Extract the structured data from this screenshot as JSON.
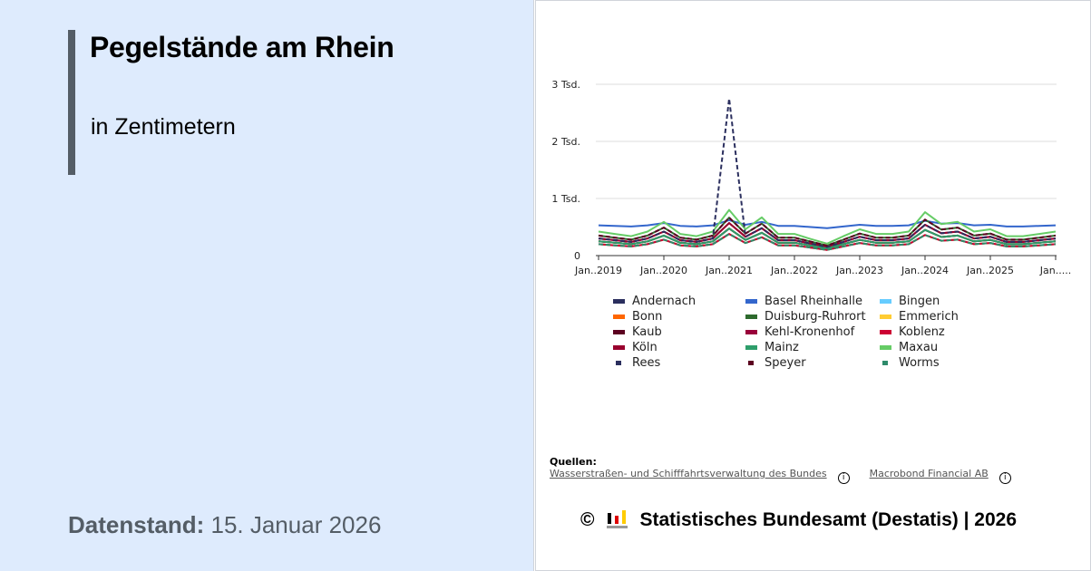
{
  "title": "Pegelstände am Rhein",
  "subtitle": "in Zentimetern",
  "datenstand_label": "Datenstand:",
  "datenstand_value": "15. Januar 2026",
  "sources": {
    "heading": "Quellen:",
    "items": [
      "Wasserstraßen- und Schifffahrtsverwaltung des Bundes",
      "Macrobond Financial AB"
    ]
  },
  "footer": {
    "copyright": "©",
    "text": "Statistisches Bundesamt (Destatis) | 2026"
  },
  "chart_data": {
    "type": "line",
    "ylim": [
      0,
      3000
    ],
    "yticks": [
      0,
      1000,
      2000,
      3000
    ],
    "ytick_labels": [
      "0",
      "1 Tsd.",
      "2 Tsd.",
      "3 Tsd."
    ],
    "xticks": [
      "2019-01",
      "2020-01",
      "2021-01",
      "2022-01",
      "2023-01",
      "2024-01",
      "2025-01",
      "2026-01"
    ],
    "xtick_labels": [
      "Jan..2019",
      "Jan..2020",
      "Jan..2021",
      "Jan..2022",
      "Jan..2023",
      "Jan..2024",
      "Jan..2025",
      "Jan....."
    ],
    "grid": true,
    "legend": "bottom",
    "x": [
      "2019-01",
      "2019-04",
      "2019-07",
      "2019-10",
      "2020-01",
      "2020-04",
      "2020-07",
      "2020-10",
      "2021-01",
      "2021-04",
      "2021-07",
      "2021-10",
      "2022-01",
      "2022-04",
      "2022-07",
      "2022-10",
      "2023-01",
      "2023-04",
      "2023-07",
      "2023-10",
      "2024-01",
      "2024-04",
      "2024-07",
      "2024-10",
      "2025-01",
      "2025-04",
      "2025-07",
      "2025-10",
      "2026-01"
    ],
    "series": [
      {
        "name": "Andernach",
        "color": "#2b2f5e",
        "dash": false,
        "values": [
          250,
          225,
          200,
          250,
          350,
          225,
          200,
          250,
          475,
          275,
          400,
          225,
          225,
          175,
          125,
          200,
          275,
          225,
          225,
          250,
          450,
          325,
          350,
          250,
          275,
          200,
          200,
          225,
          250
        ]
      },
      {
        "name": "Basel Rheinhalle",
        "color": "#3366cc",
        "dash": false,
        "values": [
          530,
          520,
          510,
          530,
          570,
          520,
          510,
          530,
          620,
          540,
          590,
          520,
          520,
          500,
          480,
          510,
          540,
          520,
          520,
          530,
          610,
          560,
          570,
          530,
          540,
          510,
          510,
          520,
          530
        ]
      },
      {
        "name": "Bingen",
        "color": "#66ccff",
        "dash": false,
        "values": [
          200,
          180,
          160,
          200,
          280,
          180,
          160,
          200,
          380,
          220,
          320,
          180,
          180,
          140,
          100,
          160,
          220,
          180,
          180,
          200,
          360,
          260,
          280,
          200,
          220,
          160,
          160,
          180,
          200
        ]
      },
      {
        "name": "Bonn",
        "color": "#ff6600",
        "dash": false,
        "values": [
          250,
          225,
          200,
          250,
          350,
          225,
          200,
          250,
          475,
          275,
          400,
          225,
          225,
          175,
          125,
          200,
          275,
          225,
          225,
          250,
          450,
          325,
          350,
          250,
          275,
          200,
          200,
          225,
          250
        ]
      },
      {
        "name": "Duisburg-Ruhrort",
        "color": "#2d6a2d",
        "dash": false,
        "values": [
          350,
          315,
          280,
          350,
          490,
          315,
          280,
          350,
          665,
          385,
          560,
          315,
          315,
          245,
          175,
          280,
          385,
          315,
          315,
          350,
          630,
          455,
          490,
          350,
          385,
          280,
          280,
          315,
          350
        ]
      },
      {
        "name": "Emmerich",
        "color": "#ffcc33",
        "dash": false,
        "values": [
          200,
          180,
          160,
          200,
          280,
          180,
          160,
          200,
          380,
          220,
          320,
          180,
          180,
          140,
          100,
          160,
          220,
          180,
          180,
          200,
          360,
          260,
          280,
          200,
          220,
          160,
          160,
          180,
          200
        ]
      },
      {
        "name": "Kaub",
        "color": "#5c0020",
        "dash": false,
        "values": [
          250,
          225,
          200,
          250,
          350,
          225,
          200,
          250,
          475,
          275,
          400,
          225,
          225,
          175,
          125,
          200,
          275,
          225,
          225,
          250,
          450,
          325,
          350,
          250,
          275,
          200,
          200,
          225,
          250
        ]
      },
      {
        "name": "Kehl-Kronenhof",
        "color": "#99003a",
        "dash": false,
        "values": [
          300,
          270,
          240,
          300,
          420,
          270,
          240,
          300,
          570,
          330,
          480,
          270,
          270,
          210,
          150,
          240,
          330,
          270,
          270,
          300,
          540,
          390,
          420,
          300,
          330,
          240,
          240,
          270,
          300
        ]
      },
      {
        "name": "Koblenz",
        "color": "#cc0033",
        "dash": false,
        "values": [
          200,
          180,
          160,
          200,
          280,
          180,
          160,
          200,
          380,
          220,
          320,
          180,
          180,
          140,
          100,
          160,
          220,
          180,
          180,
          200,
          360,
          260,
          280,
          200,
          220,
          160,
          160,
          180,
          200
        ]
      },
      {
        "name": "Köln",
        "color": "#99002e",
        "dash": false,
        "values": [
          300,
          270,
          240,
          300,
          420,
          270,
          240,
          300,
          570,
          330,
          480,
          270,
          270,
          210,
          150,
          240,
          330,
          270,
          270,
          300,
          540,
          390,
          420,
          300,
          330,
          240,
          240,
          270,
          300
        ]
      },
      {
        "name": "Mainz",
        "color": "#2e9e6b",
        "dash": false,
        "values": [
          250,
          225,
          200,
          250,
          350,
          225,
          200,
          250,
          475,
          275,
          400,
          225,
          225,
          175,
          125,
          200,
          275,
          225,
          225,
          250,
          450,
          325,
          350,
          250,
          275,
          200,
          200,
          225,
          250
        ]
      },
      {
        "name": "Maxau",
        "color": "#66cc66",
        "dash": false,
        "values": [
          420,
          380,
          340,
          420,
          590,
          380,
          340,
          420,
          800,
          460,
          670,
          380,
          380,
          290,
          210,
          340,
          460,
          380,
          380,
          420,
          760,
          550,
          590,
          420,
          460,
          340,
          340,
          380,
          420
        ]
      },
      {
        "name": "Rees",
        "color": "#2b2f5e",
        "dash": true,
        "values": [
          300,
          270,
          240,
          300,
          420,
          270,
          240,
          300,
          2750,
          330,
          480,
          270,
          270,
          210,
          150,
          240,
          330,
          270,
          270,
          300,
          540,
          390,
          420,
          300,
          330,
          240,
          240,
          270,
          300
        ]
      },
      {
        "name": "Speyer",
        "color": "#5c0020",
        "dash": true,
        "values": [
          350,
          315,
          280,
          350,
          490,
          315,
          280,
          350,
          665,
          385,
          560,
          315,
          315,
          245,
          175,
          280,
          385,
          315,
          315,
          350,
          630,
          455,
          490,
          350,
          385,
          280,
          280,
          315,
          350
        ]
      },
      {
        "name": "Worms",
        "color": "#2e8b6b",
        "dash": true,
        "values": [
          200,
          180,
          160,
          200,
          280,
          180,
          160,
          200,
          380,
          220,
          320,
          180,
          180,
          140,
          100,
          160,
          220,
          180,
          180,
          200,
          360,
          260,
          280,
          200,
          220,
          160,
          160,
          180,
          200
        ]
      }
    ]
  }
}
